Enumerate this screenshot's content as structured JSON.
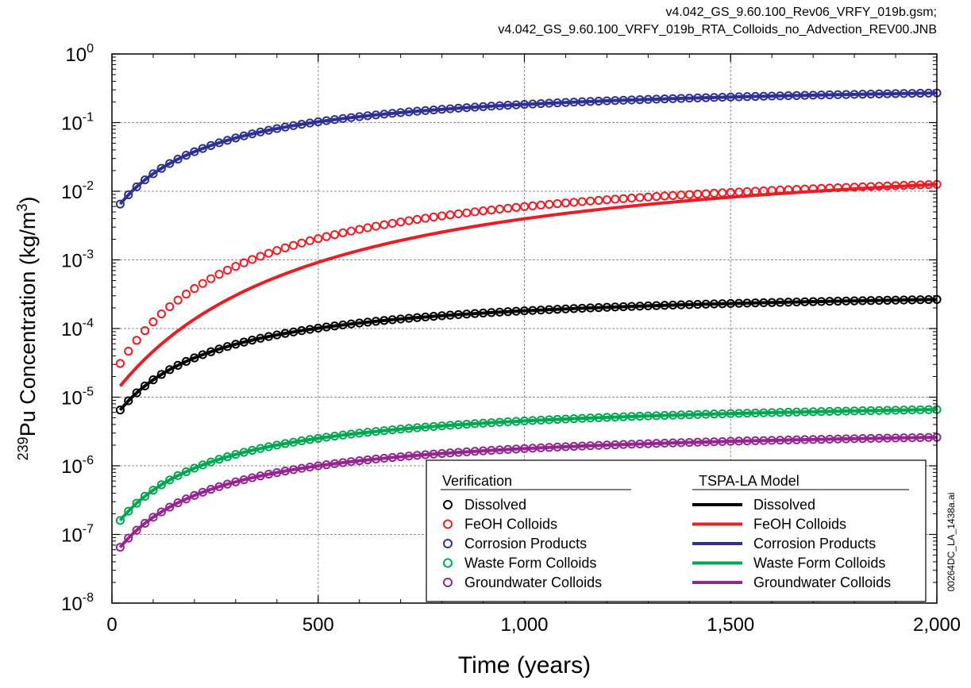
{
  "header": {
    "line1": "v4.042_GS_9.60.100_Rev06_VRFY_019b.gsm;",
    "line2": "v4.042_GS_9.60.100_VRFY_019b_RTA_Colloids_no_Advection_REV00.JNB"
  },
  "figure_id": "00264DC_LA_1438a.ai",
  "chart_data": {
    "type": "line",
    "title": "",
    "xlabel": "Time (years)",
    "ylabel_prefix": "239",
    "ylabel_main": "Pu Concentration (kg/m",
    "ylabel_exp": "3",
    "ylabel_suffix": ")",
    "xlim": [
      0,
      2000
    ],
    "ylim": [
      1e-08,
      1
    ],
    "yscale": "log",
    "grid": true,
    "x_ticks": [
      0,
      500,
      1000,
      1500,
      2000
    ],
    "x_tick_labels": [
      "0",
      "500",
      "1,000",
      "1,500",
      "2,000"
    ],
    "y_ticks": [
      {
        "value": 1e-08,
        "base": "10",
        "exp": "-8"
      },
      {
        "value": 1e-07,
        "base": "10",
        "exp": "-7"
      },
      {
        "value": 1e-06,
        "base": "10",
        "exp": "-6"
      },
      {
        "value": 1e-05,
        "base": "10",
        "exp": "-5"
      },
      {
        "value": 0.0001,
        "base": "10",
        "exp": "-4"
      },
      {
        "value": 0.001,
        "base": "10",
        "exp": "-3"
      },
      {
        "value": 0.01,
        "base": "10",
        "exp": "-2"
      },
      {
        "value": 0.1,
        "base": "10",
        "exp": "-1"
      },
      {
        "value": 1,
        "base": "10",
        "exp": "0"
      }
    ],
    "legend": {
      "placement": "bottom-right",
      "verification_heading": "Verification",
      "model_heading": "TSPA-LA Model",
      "entries": [
        "Dissolved",
        "FeOH Colloids",
        "Corrosion Products",
        "Waste Form Colloids",
        "Groundwater Colloids"
      ]
    },
    "series": [
      {
        "name": "Corrosion Products",
        "color": "#2e3192",
        "verification": {
          "start": [
            20,
            0.0065
          ],
          "end": [
            2000,
            0.27
          ],
          "shape_k": 250
        },
        "model": {
          "start": [
            20,
            0.0065
          ],
          "end": [
            2000,
            0.27
          ],
          "shape_k": 250
        }
      },
      {
        "name": "FeOH Colloids",
        "color": "#ed1c24",
        "verification": {
          "start": [
            20,
            3.1e-05
          ],
          "end": [
            2000,
            0.0126
          ],
          "shape_k": 320
        },
        "model": {
          "start": [
            20,
            1.45e-05
          ],
          "end": [
            2000,
            0.0126
          ],
          "shape_k": 500
        }
      },
      {
        "name": "Dissolved",
        "color": "#000000",
        "verification": {
          "start": [
            20,
            6.5e-06
          ],
          "end": [
            2000,
            0.000265
          ],
          "shape_k": 250
        },
        "model": {
          "start": [
            20,
            6.5e-06
          ],
          "end": [
            2000,
            0.000265
          ],
          "shape_k": 250
        }
      },
      {
        "name": "Waste Form Colloids",
        "color": "#00a651",
        "verification": {
          "start": [
            20,
            1.6e-07
          ],
          "end": [
            2000,
            6.6e-06
          ],
          "shape_k": 250
        },
        "model": {
          "start": [
            20,
            1.6e-07
          ],
          "end": [
            2000,
            6.6e-06
          ],
          "shape_k": 250
        }
      },
      {
        "name": "Groundwater Colloids",
        "color": "#92278f",
        "verification": {
          "start": [
            20,
            6.5e-08
          ],
          "end": [
            2000,
            2.6e-06
          ],
          "shape_k": 250
        },
        "model": {
          "start": [
            20,
            6.5e-08
          ],
          "end": [
            2000,
            2.6e-06
          ],
          "shape_k": 250
        }
      }
    ],
    "verification_marker_spacing": 20
  }
}
